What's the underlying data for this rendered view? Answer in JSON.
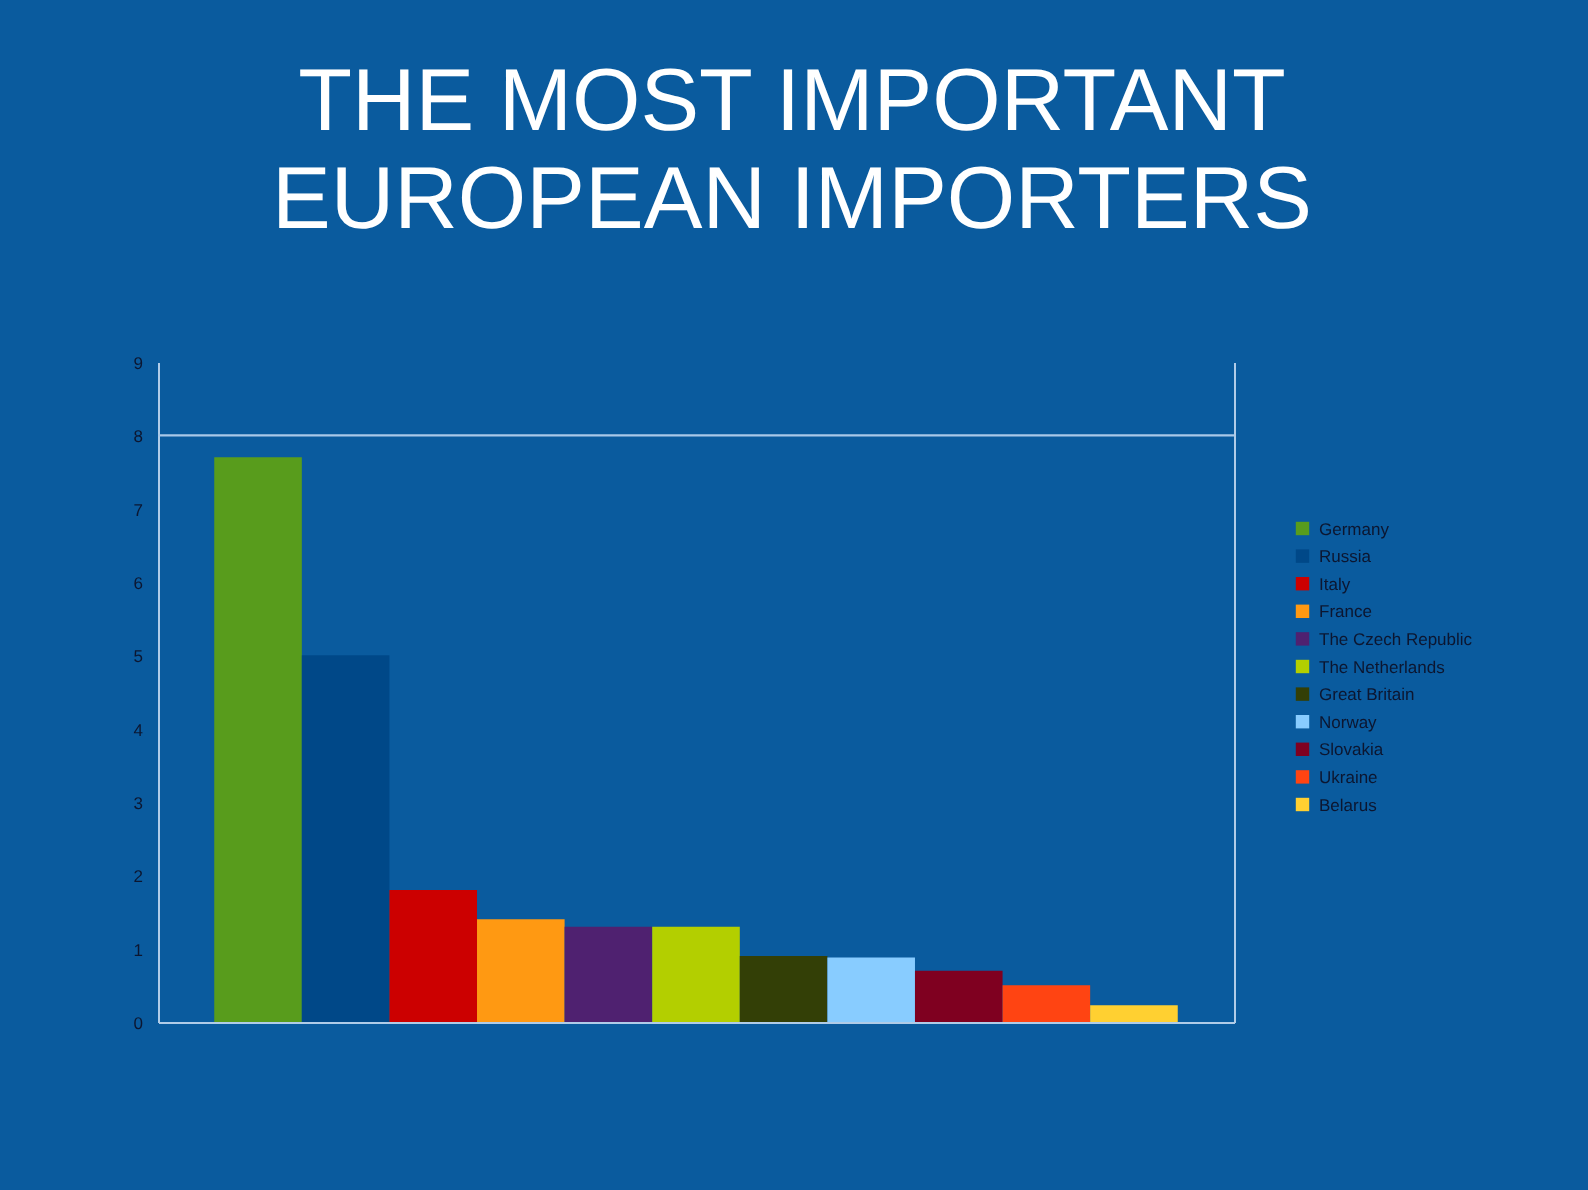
{
  "chart_data": {
    "type": "bar",
    "title": "THE MOST IMPORTANT\nEUROPEAN IMPORTERS",
    "categories": [
      null
    ],
    "series": [
      {
        "name": "Germany",
        "color": "#589c1c",
        "values": [
          7.7
        ]
      },
      {
        "name": "Russia",
        "color": "#004888",
        "values": [
          5.0
        ]
      },
      {
        "name": "Italy",
        "color": "#cc0000",
        "values": [
          1.8
        ]
      },
      {
        "name": "France",
        "color": "#ff9912",
        "values": [
          1.4
        ]
      },
      {
        "name": "The Czech Republic",
        "color": "#4f2170",
        "values": [
          1.3
        ]
      },
      {
        "name": "The Netherlands",
        "color": "#b3cf00",
        "values": [
          1.3
        ]
      },
      {
        "name": "Great Britain",
        "color": "#333f06",
        "values": [
          0.9
        ]
      },
      {
        "name": "Norway",
        "color": "#88ccff",
        "values": [
          0.88
        ]
      },
      {
        "name": "Slovakia",
        "color": "#7f0020",
        "values": [
          0.7
        ]
      },
      {
        "name": "Ukraine",
        "color": "#ff4412",
        "values": [
          0.5
        ]
      },
      {
        "name": "Belarus",
        "color": "#ffd031",
        "values": [
          0.23
        ]
      }
    ],
    "ylim": [
      0,
      9
    ],
    "yticks": [
      0,
      1,
      2,
      3,
      4,
      5,
      6,
      7,
      8,
      9
    ],
    "ref_lines": [
      {
        "axis": "y",
        "value": 8,
        "color": "#a9c8e8"
      }
    ],
    "tick_labels": "y",
    "legend": "right"
  }
}
